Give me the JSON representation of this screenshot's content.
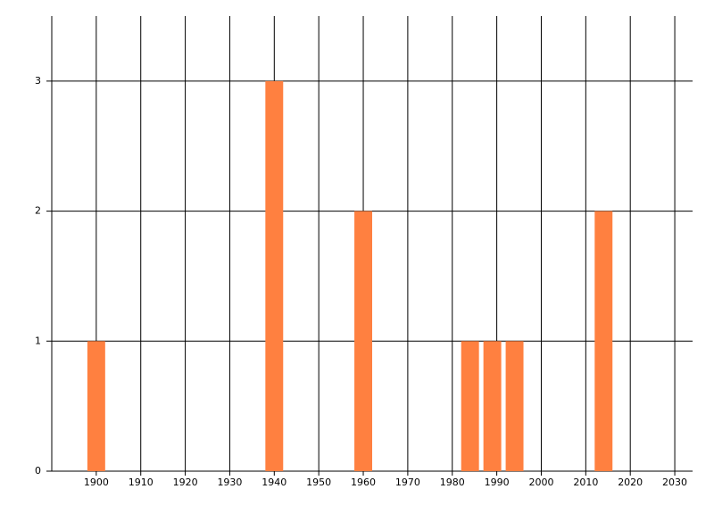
{
  "chart_data": {
    "type": "bar",
    "x": [
      1900,
      1940,
      1960,
      1984,
      1989,
      1994,
      2014
    ],
    "values": [
      1,
      3,
      2,
      1,
      1,
      1,
      2
    ],
    "color": "#ff8040",
    "xlim": [
      1890,
      2034
    ],
    "xticks": [
      1900,
      1910,
      1920,
      1930,
      1940,
      1950,
      1960,
      1970,
      1980,
      1990,
      2000,
      2010,
      2020,
      2030
    ],
    "ylim": [
      0,
      3.5
    ],
    "yticks": [
      0,
      1,
      2,
      3
    ],
    "grid": true
  }
}
